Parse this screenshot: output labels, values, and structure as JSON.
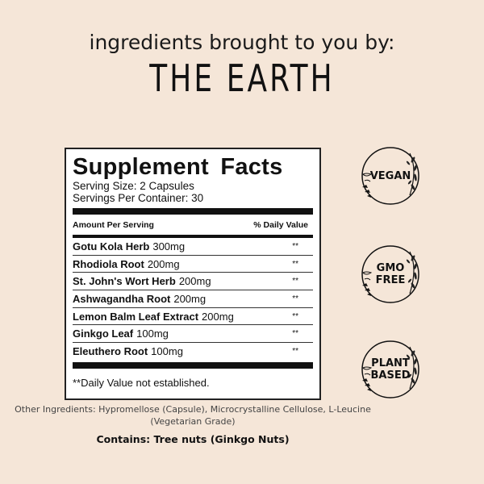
{
  "header": {
    "tagline": "ingredients brought to you by:",
    "headline": "THE EARTH"
  },
  "panel": {
    "title": "Supplement Facts",
    "serving_size": "Serving Size: 2 Capsules",
    "servings_per_container": "Servings Per Container: 30",
    "col_amount": "Amount Per Serving",
    "col_dv": "% Daily Value",
    "rows": [
      {
        "name": "Gotu Kola Herb",
        "amount": "300mg",
        "dv": "**"
      },
      {
        "name": "Rhodiola Root",
        "amount": "200mg",
        "dv": "**"
      },
      {
        "name": "St. John's Wort Herb",
        "amount": "200mg",
        "dv": "**"
      },
      {
        "name": "Ashwagandha Root",
        "amount": "200mg",
        "dv": "**"
      },
      {
        "name": "Lemon Balm Leaf Extract",
        "amount": "200mg",
        "dv": "**"
      },
      {
        "name": "Ginkgo Leaf",
        "amount": "100mg",
        "dv": "**"
      },
      {
        "name": "Eleuthero Root",
        "amount": "100mg",
        "dv": "**"
      }
    ],
    "footnote": "**Daily Value not established."
  },
  "other_ingredients": "Other Ingredients: Hypromellose (Capsule), Microcrystalline Cellulose, L-Leucine (Vegetarian Grade)",
  "contains": "Contains: Tree nuts (Ginkgo Nuts)",
  "badges": [
    {
      "label": "VEGAN",
      "icon": "laurel-wreath-icon"
    },
    {
      "label": "GMO\nFREE",
      "icon": "laurel-wreath-icon"
    },
    {
      "label": "PLANT\nBASED",
      "icon": "laurel-wreath-icon"
    }
  ],
  "colors": {
    "background": "#f5e6d8",
    "ink": "#111111"
  }
}
